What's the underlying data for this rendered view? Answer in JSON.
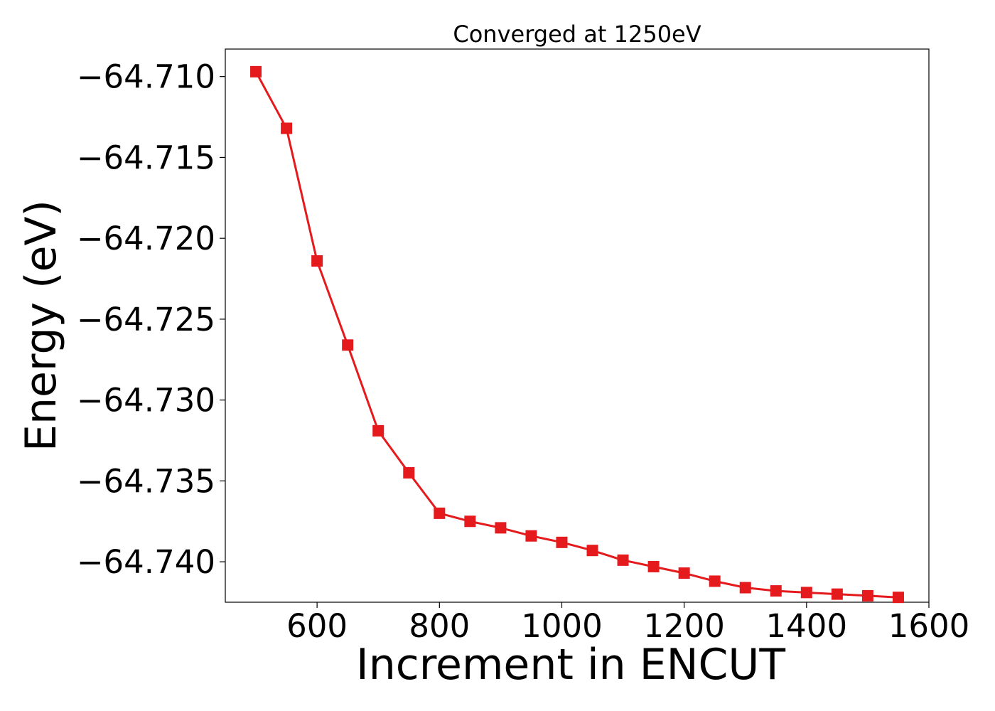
{
  "chart_data": {
    "type": "line",
    "title": "Converged at 1250eV",
    "xlabel": "Increment in ENCUT",
    "ylabel": "Energy (eV)",
    "xlim": [
      450,
      1600
    ],
    "ylim": [
      -64.7425,
      -64.7083
    ],
    "x_ticks": [
      600,
      800,
      1000,
      1200,
      1400,
      1600
    ],
    "y_ticks": [
      -64.71,
      -64.715,
      -64.72,
      -64.725,
      -64.73,
      -64.735,
      -64.74
    ],
    "x_tick_labels": [
      "600",
      "800",
      "1000",
      "1200",
      "1400",
      "1600"
    ],
    "y_tick_labels": [
      "−64.710",
      "−64.715",
      "−64.720",
      "−64.725",
      "−64.730",
      "−64.735",
      "−64.740"
    ],
    "grid": false,
    "series": [
      {
        "color": "#e41a1c",
        "marker": "square",
        "x": [
          500,
          550,
          600,
          650,
          700,
          750,
          800,
          850,
          900,
          950,
          1000,
          1050,
          1100,
          1150,
          1200,
          1250,
          1300,
          1350,
          1400,
          1450,
          1500,
          1550
        ],
        "y": [
          -64.7097,
          -64.7132,
          -64.7214,
          -64.7266,
          -64.7319,
          -64.7345,
          -64.737,
          -64.7375,
          -64.7379,
          -64.7384,
          -64.7388,
          -64.7393,
          -64.7399,
          -64.7403,
          -64.7407,
          -64.7412,
          -64.7416,
          -64.7418,
          -64.7419,
          -64.742,
          -64.7421,
          -64.7422
        ]
      }
    ]
  }
}
